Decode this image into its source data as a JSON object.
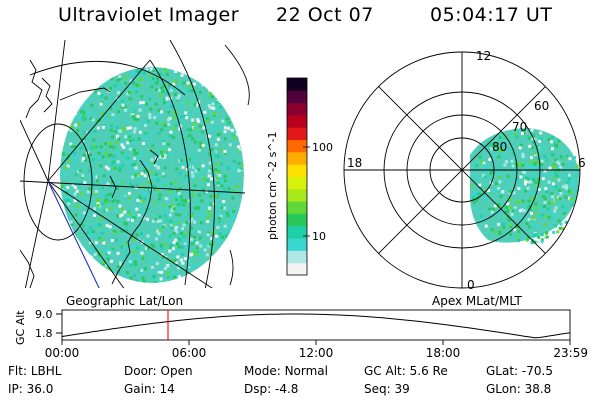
{
  "header": {
    "title": "Ultraviolet Imager",
    "date": "22 Oct 07",
    "time": "05:04:17 UT"
  },
  "colorbar": {
    "label": "photon cm^-2 s^-1",
    "ticks": [
      "100",
      "10"
    ],
    "colors": [
      "#f4f4f4",
      "#aee7e6",
      "#3ad6d2",
      "#1fcfa8",
      "#29c85a",
      "#60d838",
      "#a6e81a",
      "#d7f00c",
      "#ffe100",
      "#ffac00",
      "#ff6a00",
      "#e01818",
      "#b8001c",
      "#8a0030",
      "#50003a",
      "#100020"
    ]
  },
  "left_map": {
    "label": "Geographic Lat/Lon"
  },
  "polar_map": {
    "label": "Apex MLat/MLT",
    "mlt_labels": [
      "12",
      "18",
      "6",
      "0"
    ],
    "lat_labels": [
      "60",
      "70",
      "80"
    ]
  },
  "timeline": {
    "axis_label": "GC Alt",
    "y_ticks": [
      "9.0",
      "1.8"
    ],
    "x_ticks": [
      "00:00",
      "06:00",
      "12:00",
      "18:00",
      "23:59"
    ],
    "marker_color": "#ff0000"
  },
  "info": {
    "filter": {
      "label": "Flt:",
      "value": "LBHL"
    },
    "ip": {
      "label": "IP:",
      "value": "36.0"
    },
    "door": {
      "label": "Door:",
      "value": "Open"
    },
    "gain": {
      "label": "Gain:",
      "value": "14"
    },
    "mode": {
      "label": "Mode:",
      "value": "Normal"
    },
    "dsp": {
      "label": "Dsp:",
      "value": "-4.8"
    },
    "gc_alt": {
      "label": "GC Alt:",
      "value": "5.6 Re"
    },
    "seq": {
      "label": "Seq:",
      "value": "39"
    },
    "glat": {
      "label": "GLat:",
      "value": "-70.5"
    },
    "glon": {
      "label": "GLon:",
      "value": "38.8"
    }
  }
}
